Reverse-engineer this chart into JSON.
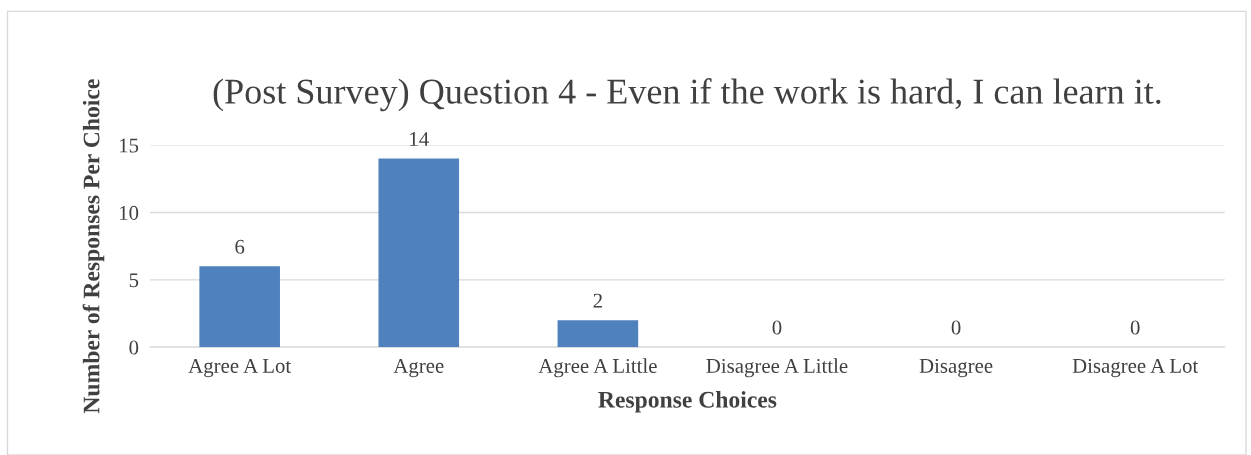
{
  "chart_data": {
    "type": "bar",
    "title": "(Post Survey) Question 4 - Even if the work is hard, I can learn it.",
    "xlabel": "Response Choices",
    "ylabel": "Number of Responses Per Choice",
    "categories": [
      "Agree A Lot",
      "Agree",
      "Agree A Little",
      "Disagree A Little",
      "Disagree",
      "Disagree A Lot"
    ],
    "values": [
      6,
      14,
      2,
      0,
      0,
      0
    ],
    "color": "#4f81bd",
    "ylim": [
      0,
      15
    ],
    "yticks": [
      0,
      5,
      10,
      15
    ],
    "grid": "y",
    "data_labels": true,
    "legend": false
  }
}
